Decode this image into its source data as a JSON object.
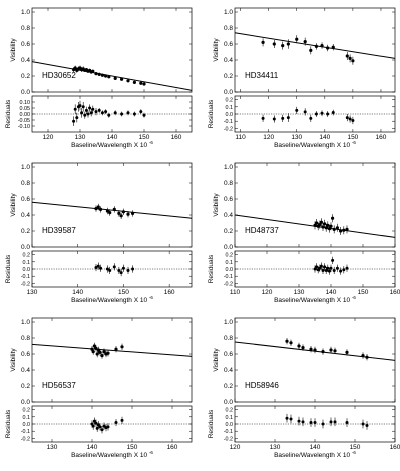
{
  "figure": {
    "panels_layout": "3 rows x 2 columns"
  },
  "chart_data": [
    {
      "type": "scatter",
      "star": "HD30652",
      "xlabel": "Baseline/Wavelength X 10",
      "xlabel_exp": "-6",
      "ylabel": "Visibility",
      "res_label": "Residuals",
      "xlim": [
        115,
        165
      ],
      "ylim": [
        0,
        1.05
      ],
      "res_ylim": [
        -0.15,
        0.15
      ],
      "xticks": [
        120,
        130,
        140,
        150,
        160
      ],
      "yticks": [
        0.0,
        0.2,
        0.4,
        0.6,
        0.8,
        1.0
      ],
      "res_yticks": [
        -0.1,
        -0.05,
        0.0,
        0.05,
        0.1
      ],
      "yfmt": 1,
      "res_fmt": 2,
      "fit": {
        "x": [
          115,
          165
        ],
        "y": [
          0.38,
          0.02
        ]
      },
      "x": [
        128,
        128.5,
        129,
        129.5,
        130,
        130.5,
        131,
        131.5,
        132,
        132.5,
        133,
        133.5,
        134,
        135,
        136,
        137,
        138,
        139,
        141,
        143,
        145,
        147,
        149,
        150
      ],
      "y": [
        0.28,
        0.3,
        0.27,
        0.29,
        0.3,
        0.28,
        0.29,
        0.27,
        0.28,
        0.26,
        0.27,
        0.25,
        0.26,
        0.23,
        0.22,
        0.21,
        0.2,
        0.19,
        0.17,
        0.16,
        0.14,
        0.12,
        0.11,
        0.1
      ],
      "yerr": [
        0.03,
        0.03,
        0.03,
        0.03,
        0.03,
        0.03,
        0.03,
        0.02,
        0.02,
        0.02,
        0.02,
        0.02,
        0.02,
        0.02,
        0.02,
        0.02,
        0.02,
        0.02,
        0.02,
        0.02,
        0.02,
        0.02,
        0.02,
        0.02
      ],
      "res": [
        -0.06,
        0.04,
        -0.03,
        0.06,
        0.07,
        0.01,
        0.06,
        -0.01,
        0.03,
        0.0,
        0.05,
        0.01,
        0.04,
        0.02,
        0.03,
        0.01,
        0.02,
        -0.01,
        0.01,
        0.0,
        0.01,
        0.0,
        0.02,
        -0.01
      ],
      "reserr": [
        0.04,
        0.04,
        0.04,
        0.04,
        0.04,
        0.04,
        0.04,
        0.03,
        0.03,
        0.03,
        0.03,
        0.03,
        0.03,
        0.03,
        0.02,
        0.02,
        0.02,
        0.02,
        0.02,
        0.02,
        0.02,
        0.02,
        0.02,
        0.02
      ]
    },
    {
      "type": "scatter",
      "star": "HD34411",
      "xlabel": "Baseline/Wavelength X 10",
      "xlabel_exp": "-6",
      "ylabel": "Visibility",
      "res_label": "Residuals",
      "xlim": [
        108,
        165
      ],
      "ylim": [
        0,
        1.05
      ],
      "res_ylim": [
        -0.25,
        0.25
      ],
      "xticks": [
        110,
        120,
        130,
        140,
        150,
        160
      ],
      "yticks": [
        0.0,
        0.2,
        0.4,
        0.6,
        0.8,
        1.0
      ],
      "res_yticks": [
        -0.2,
        -0.1,
        0.0,
        0.1,
        0.2
      ],
      "yfmt": 1,
      "res_fmt": 1,
      "fit": {
        "x": [
          108,
          165
        ],
        "y": [
          0.74,
          0.42
        ]
      },
      "x": [
        118,
        122,
        125,
        127,
        130,
        133,
        135,
        137,
        139,
        141,
        143,
        148,
        149,
        150
      ],
      "y": [
        0.62,
        0.6,
        0.58,
        0.6,
        0.66,
        0.63,
        0.52,
        0.57,
        0.58,
        0.55,
        0.56,
        0.45,
        0.42,
        0.39
      ],
      "yerr": [
        0.05,
        0.05,
        0.05,
        0.06,
        0.05,
        0.05,
        0.05,
        0.04,
        0.04,
        0.04,
        0.04,
        0.05,
        0.05,
        0.05
      ],
      "res": [
        -0.06,
        -0.07,
        -0.06,
        -0.05,
        0.05,
        0.03,
        -0.06,
        0.0,
        0.01,
        0.0,
        0.02,
        -0.05,
        -0.07,
        -0.09
      ],
      "reserr": [
        0.05,
        0.05,
        0.05,
        0.06,
        0.05,
        0.05,
        0.05,
        0.04,
        0.04,
        0.04,
        0.04,
        0.05,
        0.05,
        0.05
      ]
    },
    {
      "type": "scatter",
      "star": "HD39587",
      "xlabel": "Baseline/Wavelength X 10",
      "xlabel_exp": "-6",
      "ylabel": "Visibility",
      "res_label": "Residuals",
      "xlim": [
        130,
        165
      ],
      "ylim": [
        0,
        1.05
      ],
      "res_ylim": [
        -0.25,
        0.25
      ],
      "xticks": [
        130,
        140,
        150,
        160
      ],
      "yticks": [
        0.0,
        0.2,
        0.4,
        0.6,
        0.8,
        1.0
      ],
      "res_yticks": [
        -0.2,
        -0.1,
        0.0,
        0.1,
        0.2
      ],
      "yfmt": 1,
      "res_fmt": 1,
      "fit": {
        "x": [
          130,
          165
        ],
        "y": [
          0.56,
          0.36
        ]
      },
      "x": [
        144,
        144.5,
        145,
        146.5,
        147,
        148,
        149,
        149.5,
        150,
        151,
        152
      ],
      "y": [
        0.48,
        0.5,
        0.47,
        0.45,
        0.43,
        0.47,
        0.42,
        0.39,
        0.44,
        0.41,
        0.42
      ],
      "yerr": [
        0.04,
        0.04,
        0.04,
        0.04,
        0.04,
        0.04,
        0.04,
        0.04,
        0.04,
        0.04,
        0.04
      ],
      "res": [
        0.02,
        0.04,
        0.01,
        0.0,
        -0.02,
        0.03,
        -0.02,
        -0.05,
        0.01,
        -0.02,
        0.0
      ],
      "reserr": [
        0.05,
        0.05,
        0.05,
        0.05,
        0.05,
        0.05,
        0.05,
        0.05,
        0.05,
        0.05,
        0.05
      ]
    },
    {
      "type": "scatter",
      "star": "HD48737",
      "xlabel": "Baseline/Wavelength X 10",
      "xlabel_exp": "-6",
      "ylabel": "Visibility",
      "res_label": "Residuals",
      "xlim": [
        110,
        160
      ],
      "ylim": [
        0,
        1.05
      ],
      "res_ylim": [
        -0.25,
        0.25
      ],
      "xticks": [
        110,
        120,
        130,
        140,
        150,
        160
      ],
      "yticks": [
        0.0,
        0.2,
        0.4,
        0.6,
        0.8,
        1.0
      ],
      "res_yticks": [
        -0.2,
        -0.1,
        0.0,
        0.1,
        0.2
      ],
      "yfmt": 1,
      "res_fmt": 1,
      "fit": {
        "x": [
          110,
          160
        ],
        "y": [
          0.4,
          0.12
        ]
      },
      "x": [
        135,
        135.5,
        136,
        136.5,
        137,
        137.5,
        138,
        138.5,
        139,
        139.5,
        140,
        140.5,
        141,
        142,
        143,
        144,
        145
      ],
      "y": [
        0.27,
        0.3,
        0.26,
        0.28,
        0.31,
        0.25,
        0.29,
        0.24,
        0.27,
        0.23,
        0.26,
        0.36,
        0.22,
        0.24,
        0.2,
        0.21,
        0.22
      ],
      "yerr": [
        0.05,
        0.05,
        0.05,
        0.05,
        0.05,
        0.05,
        0.05,
        0.05,
        0.05,
        0.05,
        0.05,
        0.05,
        0.05,
        0.05,
        0.05,
        0.05,
        0.05
      ],
      "res": [
        0.0,
        0.03,
        -0.01,
        0.01,
        0.04,
        -0.02,
        0.03,
        -0.02,
        0.01,
        -0.03,
        0.01,
        0.12,
        -0.02,
        0.01,
        -0.03,
        -0.01,
        0.01
      ],
      "reserr": [
        0.05,
        0.05,
        0.05,
        0.05,
        0.05,
        0.05,
        0.05,
        0.05,
        0.05,
        0.05,
        0.05,
        0.05,
        0.05,
        0.05,
        0.05,
        0.05,
        0.05
      ]
    },
    {
      "type": "scatter",
      "star": "HD56537",
      "xlabel": "Baseline/Wavelength X 10",
      "xlabel_exp": "-6",
      "ylabel": "Visibility",
      "res_label": "Residuals",
      "xlim": [
        125,
        165
      ],
      "ylim": [
        0,
        1.05
      ],
      "res_ylim": [
        -0.25,
        0.25
      ],
      "xticks": [
        130,
        140,
        150,
        160
      ],
      "yticks": [
        0.0,
        0.2,
        0.4,
        0.6,
        0.8,
        1.0
      ],
      "res_yticks": [
        -0.2,
        -0.1,
        0.0,
        0.1,
        0.2
      ],
      "yfmt": 1,
      "res_fmt": 1,
      "fit": {
        "x": [
          125,
          165
        ],
        "y": [
          0.72,
          0.57
        ]
      },
      "x": [
        140,
        140.3,
        140.6,
        141,
        141.3,
        141.6,
        142,
        142.5,
        143,
        143.5,
        144,
        146,
        147.5
      ],
      "y": [
        0.66,
        0.63,
        0.7,
        0.67,
        0.6,
        0.65,
        0.62,
        0.58,
        0.63,
        0.6,
        0.61,
        0.66,
        0.69
      ],
      "yerr": [
        0.04,
        0.04,
        0.04,
        0.04,
        0.04,
        0.04,
        0.04,
        0.04,
        0.04,
        0.04,
        0.04,
        0.04,
        0.04
      ],
      "res": [
        0.0,
        -0.03,
        0.04,
        0.01,
        -0.06,
        -0.01,
        -0.04,
        -0.08,
        -0.03,
        -0.05,
        -0.04,
        0.02,
        0.05
      ],
      "reserr": [
        0.05,
        0.05,
        0.05,
        0.05,
        0.05,
        0.05,
        0.05,
        0.05,
        0.05,
        0.05,
        0.05,
        0.05,
        0.05
      ]
    },
    {
      "type": "scatter",
      "star": "HD58946",
      "xlabel": "Baseline/Wavelength X 10",
      "xlabel_exp": "-6",
      "ylabel": "Visibility",
      "res_label": "Residuals",
      "xlim": [
        120,
        160
      ],
      "ylim": [
        0,
        1.05
      ],
      "res_ylim": [
        -0.25,
        0.25
      ],
      "xticks": [
        120,
        130,
        140,
        150,
        160
      ],
      "yticks": [
        0.0,
        0.2,
        0.4,
        0.6,
        0.8,
        1.0
      ],
      "res_yticks": [
        -0.2,
        -0.1,
        0.0,
        0.1,
        0.2
      ],
      "yfmt": 1,
      "res_fmt": 1,
      "fit": {
        "x": [
          120,
          160
        ],
        "y": [
          0.75,
          0.52
        ]
      },
      "x": [
        133,
        134,
        136,
        137,
        139,
        140,
        142,
        144,
        145,
        148,
        152,
        153
      ],
      "y": [
        0.76,
        0.74,
        0.7,
        0.68,
        0.66,
        0.65,
        0.63,
        0.65,
        0.64,
        0.62,
        0.58,
        0.56
      ],
      "yerr": [
        0.04,
        0.04,
        0.04,
        0.04,
        0.04,
        0.04,
        0.04,
        0.04,
        0.04,
        0.04,
        0.04,
        0.04
      ],
      "res": [
        0.08,
        0.07,
        0.04,
        0.03,
        0.02,
        0.02,
        0.0,
        0.03,
        0.03,
        0.02,
        0.0,
        -0.02
      ],
      "reserr": [
        0.06,
        0.06,
        0.06,
        0.06,
        0.06,
        0.06,
        0.06,
        0.06,
        0.06,
        0.06,
        0.06,
        0.06
      ]
    }
  ]
}
